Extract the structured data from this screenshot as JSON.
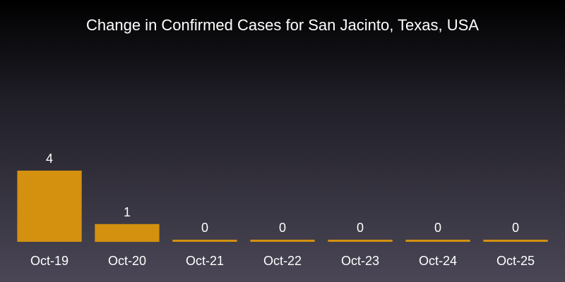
{
  "chart_data": {
    "type": "bar",
    "title": "Change in Confirmed Cases for San Jacinto, Texas, USA",
    "categories": [
      "Oct-19",
      "Oct-20",
      "Oct-21",
      "Oct-22",
      "Oct-23",
      "Oct-24",
      "Oct-25"
    ],
    "values": [
      4,
      1,
      0,
      0,
      0,
      0,
      0
    ],
    "xlabel": "",
    "ylabel": "",
    "ylim": [
      0,
      4
    ],
    "grid": false,
    "legend": "none",
    "bar_color": "#d4900f",
    "background_colors": [
      "#000000",
      "#4a4656"
    ],
    "text_color": "#ffffff"
  }
}
